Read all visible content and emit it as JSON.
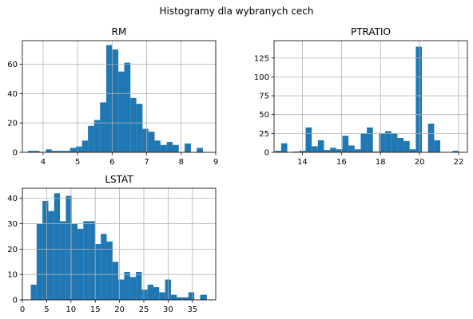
{
  "figure": {
    "suptitle": "Histogramy dla wybranych cech"
  },
  "chart_data": [
    {
      "type": "bar",
      "title": "RM",
      "xlim": [
        3.4,
        9.0
      ],
      "ylim": [
        0,
        76
      ],
      "xticks": [
        4,
        5,
        6,
        7,
        8,
        9
      ],
      "yticks": [
        0,
        20,
        40,
        60
      ],
      "grid": true,
      "bin_edges": [
        3.56,
        3.73,
        3.9,
        4.08,
        4.25,
        4.43,
        4.6,
        4.78,
        4.95,
        5.13,
        5.3,
        5.48,
        5.65,
        5.83,
        6.0,
        6.18,
        6.35,
        6.53,
        6.7,
        6.88,
        7.05,
        7.23,
        7.4,
        7.58,
        7.75,
        7.93,
        8.1,
        8.28,
        8.45,
        8.63,
        8.8
      ],
      "counts": [
        1,
        1,
        0,
        2,
        1,
        1,
        1,
        3,
        4,
        8,
        18,
        22,
        34,
        73,
        70,
        55,
        61,
        37,
        33,
        16,
        14,
        8,
        5,
        7,
        5,
        0,
        6,
        0,
        3,
        0
      ]
    },
    {
      "type": "bar",
      "title": "PTRATIO",
      "xlim": [
        12.55,
        22.45
      ],
      "ylim": [
        0,
        148
      ],
      "xticks": [
        14,
        16,
        18,
        20,
        22
      ],
      "yticks": [
        0,
        25,
        50,
        75,
        100,
        125
      ],
      "grid": true,
      "bin_edges": [
        12.6,
        12.913,
        13.227,
        13.54,
        13.853,
        14.167,
        14.48,
        14.793,
        15.107,
        15.42,
        15.733,
        16.047,
        16.36,
        16.673,
        16.987,
        17.3,
        17.613,
        17.927,
        18.24,
        18.553,
        18.867,
        19.18,
        19.493,
        19.807,
        20.12,
        20.433,
        20.747,
        21.06,
        21.373,
        21.687,
        22.0
      ],
      "counts": [
        2,
        12,
        0,
        1,
        2,
        33,
        8,
        16,
        3,
        6,
        4,
        22,
        9,
        4,
        25,
        33,
        1,
        25,
        28,
        25,
        19,
        15,
        4,
        140,
        0,
        38,
        16,
        0,
        0,
        2
      ]
    },
    {
      "type": "bar",
      "title": "LSTAT",
      "xlim": [
        0,
        39.8
      ],
      "ylim": [
        0,
        44
      ],
      "xticks": [
        0,
        5,
        10,
        15,
        20,
        25,
        30,
        35
      ],
      "yticks": [
        0,
        10,
        20,
        30,
        40
      ],
      "grid": true,
      "bin_edges": [
        1.73,
        2.93,
        4.13,
        5.34,
        6.54,
        7.74,
        8.94,
        10.14,
        11.35,
        12.55,
        13.75,
        14.95,
        16.15,
        17.36,
        18.56,
        19.76,
        20.96,
        22.16,
        23.37,
        24.57,
        25.77,
        26.97,
        28.17,
        29.38,
        30.58,
        31.78,
        32.98,
        34.18,
        35.39,
        36.59,
        37.97
      ],
      "counts": [
        6,
        30,
        39,
        35,
        42,
        31,
        41,
        30,
        28,
        31,
        31,
        22,
        26,
        23,
        15,
        8,
        11,
        9,
        11,
        4,
        6,
        5,
        3,
        8,
        2,
        1,
        1,
        3,
        0,
        2
      ]
    }
  ]
}
